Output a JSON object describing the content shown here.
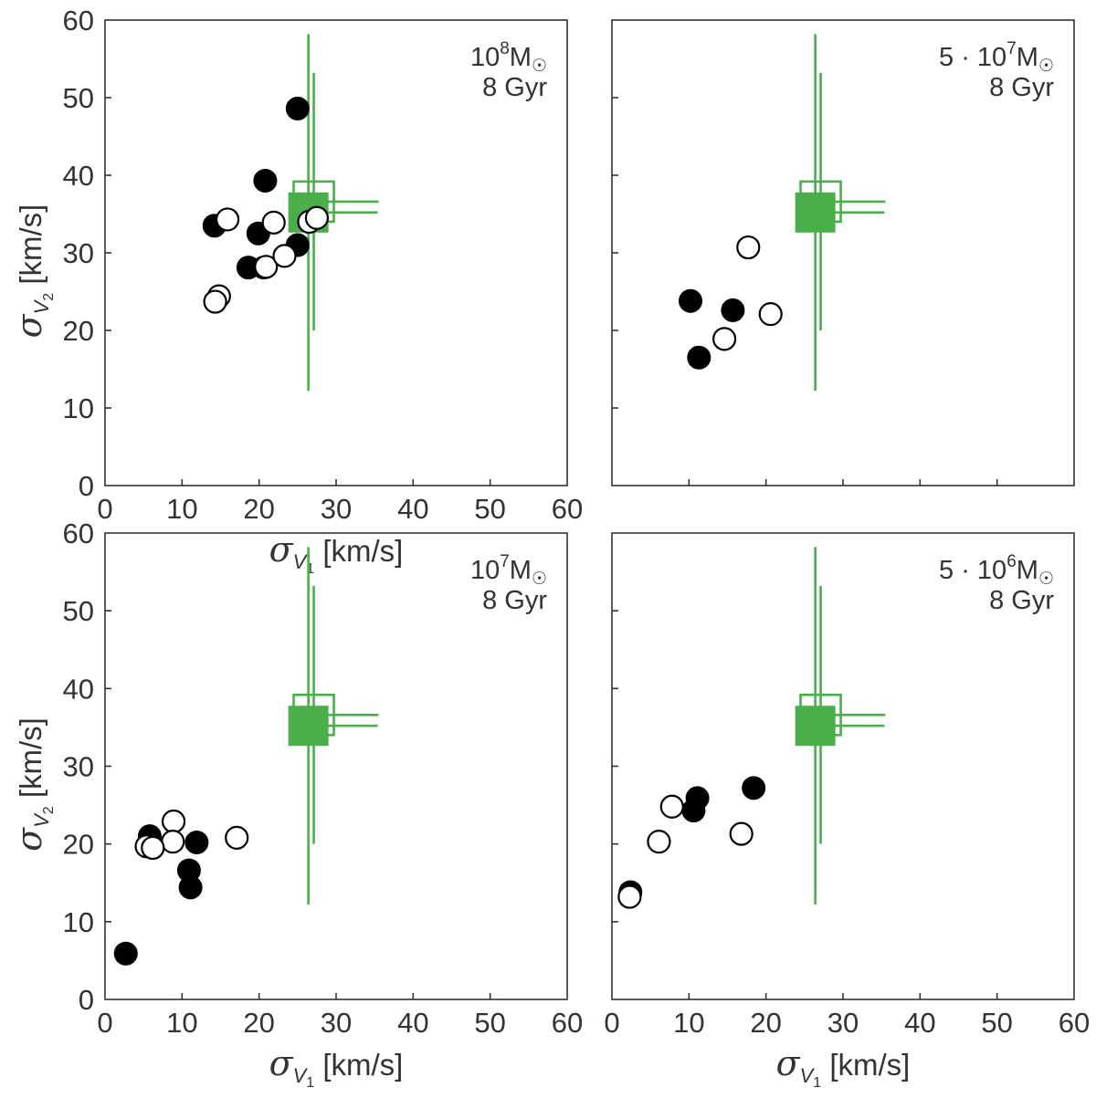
{
  "chart_data": [
    {
      "type": "scatter",
      "panel": "top-left",
      "mass_label": "10⁸M☉",
      "mass_base": "10",
      "mass_exp": "8",
      "mass_unit": "M",
      "mass_sym": "☉",
      "age_label": "8 Gyr",
      "xlabel_main": "σ",
      "xlabel_sub": "V",
      "xlabel_subsub": "1",
      "xlabel_unit": " [km/s]",
      "ylabel_main": "σ",
      "ylabel_sub": "V",
      "ylabel_subsub": "2",
      "ylabel_unit": "  [km/s]",
      "xlim": [
        0,
        60
      ],
      "ylim": [
        0,
        60
      ],
      "xticks": [
        "0",
        "10",
        "20",
        "30",
        "40",
        "50",
        "60"
      ],
      "yticks": [
        "0",
        "10",
        "20",
        "30",
        "40",
        "50",
        "60"
      ],
      "series": [
        {
          "name": "filled",
          "points": [
            [
              25.0,
              48.6
            ],
            [
              20.8,
              39.3
            ],
            [
              14.2,
              33.5
            ],
            [
              19.9,
              32.5
            ],
            [
              25.0,
              31.0
            ],
            [
              18.6,
              28.1
            ],
            [
              20.6,
              28.1
            ]
          ]
        },
        {
          "name": "open",
          "points": [
            [
              15.9,
              34.3
            ],
            [
              21.9,
              33.9
            ],
            [
              14.8,
              24.4
            ],
            [
              14.3,
              23.7
            ],
            [
              20.9,
              28.2
            ],
            [
              23.3,
              29.6
            ],
            [
              26.5,
              34.0
            ],
            [
              27.5,
              34.5
            ]
          ]
        }
      ],
      "observation": {
        "x": 26.4,
        "y": 35.2,
        "x_err": [
          2.4,
          9.0
        ],
        "y_err": [
          23.0,
          23.0
        ],
        "alt_x": 27.1,
        "alt_y": 36.6,
        "alt_x_err": [
          3.0,
          8.4
        ],
        "alt_y_err": [
          16.6,
          16.6
        ]
      }
    },
    {
      "type": "scatter",
      "panel": "top-right",
      "mass_label": "5·10⁷M☉",
      "mass_base": "5 · 10",
      "mass_exp": "7",
      "mass_unit": "M",
      "mass_sym": "☉",
      "age_label": "8 Gyr",
      "xlim": [
        0,
        60
      ],
      "ylim": [
        0,
        60
      ],
      "xticks": [],
      "yticks": [],
      "series": [
        {
          "name": "filled",
          "points": [
            [
              10.2,
              23.8
            ],
            [
              15.7,
              22.6
            ],
            [
              11.3,
              16.5
            ]
          ]
        },
        {
          "name": "open",
          "points": [
            [
              17.7,
              30.7
            ],
            [
              20.6,
              22.1
            ],
            [
              14.6,
              18.9
            ]
          ]
        }
      ],
      "observation": {
        "x": 26.4,
        "y": 35.2,
        "x_err": [
          2.4,
          9.0
        ],
        "y_err": [
          23.0,
          23.0
        ],
        "alt_x": 27.1,
        "alt_y": 36.6,
        "alt_x_err": [
          3.0,
          8.4
        ],
        "alt_y_err": [
          16.6,
          16.6
        ]
      }
    },
    {
      "type": "scatter",
      "panel": "bottom-left",
      "mass_label": "10⁷M☉",
      "mass_base": "10",
      "mass_exp": "7",
      "mass_unit": "M",
      "mass_sym": "☉",
      "age_label": "8 Gyr",
      "xlabel_main": "σ",
      "xlabel_sub": "V",
      "xlabel_subsub": "1",
      "xlabel_unit": " [km/s]",
      "ylabel_main": "σ",
      "ylabel_sub": "V",
      "ylabel_subsub": "2",
      "ylabel_unit": "  [km/s]",
      "xlim": [
        0,
        60
      ],
      "ylim": [
        0,
        60
      ],
      "xticks": [
        "0",
        "10",
        "20",
        "30",
        "40",
        "50",
        "60"
      ],
      "yticks": [
        "0",
        "10",
        "20",
        "30",
        "40",
        "50",
        "60"
      ],
      "series": [
        {
          "name": "filled",
          "points": [
            [
              5.8,
              21.0
            ],
            [
              11.9,
              20.2
            ],
            [
              10.9,
              16.6
            ],
            [
              11.1,
              14.4
            ],
            [
              2.7,
              5.9
            ]
          ]
        },
        {
          "name": "open",
          "points": [
            [
              8.9,
              22.9
            ],
            [
              8.8,
              20.3
            ],
            [
              5.4,
              19.7
            ],
            [
              6.2,
              19.5
            ],
            [
              17.1,
              20.8
            ]
          ]
        }
      ],
      "observation": {
        "x": 26.4,
        "y": 35.2,
        "x_err": [
          2.4,
          9.0
        ],
        "y_err": [
          23.0,
          23.0
        ],
        "alt_x": 27.1,
        "alt_y": 36.6,
        "alt_x_err": [
          3.0,
          8.4
        ],
        "alt_y_err": [
          16.6,
          16.6
        ]
      }
    },
    {
      "type": "scatter",
      "panel": "bottom-right",
      "mass_label": "5·10⁶M☉",
      "mass_base": "5 · 10",
      "mass_exp": "6",
      "mass_unit": "M",
      "mass_sym": "☉",
      "age_label": "8 Gyr",
      "xlabel_main": "σ",
      "xlabel_sub": "V",
      "xlabel_subsub": "1",
      "xlabel_unit": " [km/s]",
      "xlim": [
        0,
        60
      ],
      "ylim": [
        0,
        60
      ],
      "xticks": [
        "0",
        "10",
        "20",
        "30",
        "40",
        "50",
        "60"
      ],
      "yticks": [],
      "series": [
        {
          "name": "filled",
          "points": [
            [
              11.1,
              25.9
            ],
            [
              10.6,
              24.3
            ],
            [
              18.4,
              27.2
            ],
            [
              2.4,
              13.8
            ]
          ]
        },
        {
          "name": "open",
          "points": [
            [
              7.8,
              24.8
            ],
            [
              6.1,
              20.3
            ],
            [
              16.8,
              21.3
            ],
            [
              2.3,
              13.2
            ]
          ]
        }
      ],
      "observation": {
        "x": 26.4,
        "y": 35.2,
        "x_err": [
          2.4,
          9.0
        ],
        "y_err": [
          23.0,
          23.0
        ],
        "alt_x": 27.1,
        "alt_y": 36.6,
        "alt_x_err": [
          3.0,
          8.4
        ],
        "alt_y_err": [
          16.6,
          16.6
        ]
      }
    }
  ]
}
